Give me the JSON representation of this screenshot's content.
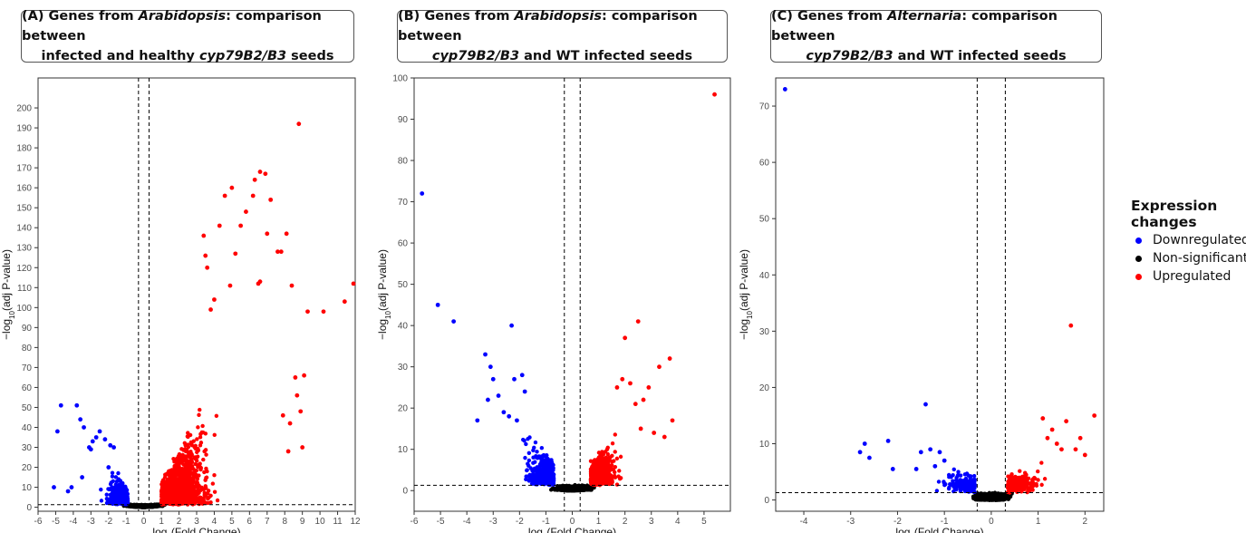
{
  "titles": [
    {
      "line1_pre": "(A) Genes from ",
      "line1_em": "Arabidopsis",
      "line1_post": ": comparison between",
      "line2_pre": "infected and healthy ",
      "line2_em": "cyp79B2/B3",
      "line2_post": " seeds"
    },
    {
      "line1_pre": "(B) Genes from ",
      "line1_em": "Arabidopsis",
      "line1_post": ": comparison between",
      "line2_pre": "",
      "line2_em": "cyp79B2/B3",
      "line2_post": " and WT infected seeds"
    },
    {
      "line1_pre": "(C) Genes from ",
      "line1_em": "Alternaria",
      "line1_post": ": comparison between",
      "line2_pre": "",
      "line2_em": "cyp79B2/B3",
      "line2_post": " and WT infected seeds"
    }
  ],
  "legend": {
    "title": "Expression changes",
    "items": [
      {
        "label": "Downregulated",
        "color": "#0000ff"
      },
      {
        "label": "Non-significant",
        "color": "#000000"
      },
      {
        "label": "Upregulated",
        "color": "#ff0000"
      }
    ]
  },
  "chart_data": [
    {
      "type": "scatter",
      "xlabel": "log2(Fold Change)",
      "ylabel": "-log10(adj P-value)",
      "xlim": [
        -6,
        12
      ],
      "ylim": [
        -2,
        215
      ],
      "xticks": [
        -6,
        -5,
        -4,
        -3,
        -2,
        -1,
        0,
        1,
        2,
        3,
        4,
        5,
        6,
        7,
        8,
        9,
        10,
        11,
        12
      ],
      "yticks": [
        0,
        10,
        20,
        30,
        40,
        50,
        60,
        70,
        80,
        90,
        100,
        110,
        120,
        130,
        140,
        150,
        160,
        170,
        180,
        190,
        200
      ],
      "fc_threshold": 0.3,
      "p_threshold": 1.3,
      "grid": false,
      "series": [
        {
          "name": "Downregulated",
          "color": "#0000ff",
          "points": [
            [
              -5.1,
              10
            ],
            [
              -4.9,
              38
            ],
            [
              -4.7,
              51
            ],
            [
              -3.8,
              51
            ],
            [
              -3.6,
              44
            ],
            [
              -3.4,
              40
            ],
            [
              -3.1,
              30
            ],
            [
              -3.0,
              29
            ],
            [
              -2.9,
              33
            ],
            [
              -2.7,
              35
            ],
            [
              -2.5,
              38
            ],
            [
              -2.2,
              34
            ],
            [
              -1.9,
              31
            ],
            [
              -1.7,
              30
            ],
            [
              -2.0,
              20
            ],
            [
              -3.5,
              15
            ],
            [
              -4.1,
              10
            ],
            [
              -4.3,
              8
            ]
          ]
        },
        {
          "name": "Upregulated",
          "color": "#ff0000",
          "points": [
            [
              8.8,
              192
            ],
            [
              11.9,
              112
            ],
            [
              11.4,
              103
            ],
            [
              10.2,
              98
            ],
            [
              9.3,
              98
            ],
            [
              9.1,
              66
            ],
            [
              8.6,
              65
            ],
            [
              8.4,
              111
            ],
            [
              8.1,
              137
            ],
            [
              7.8,
              128
            ],
            [
              7.6,
              128
            ],
            [
              7.2,
              154
            ],
            [
              7.0,
              137
            ],
            [
              6.6,
              168
            ],
            [
              6.3,
              164
            ],
            [
              6.9,
              167
            ],
            [
              6.6,
              113
            ],
            [
              6.5,
              112
            ],
            [
              6.2,
              156
            ],
            [
              5.8,
              148
            ],
            [
              5.5,
              141
            ],
            [
              5.2,
              127
            ],
            [
              5.0,
              160
            ],
            [
              4.9,
              111
            ],
            [
              4.6,
              156
            ],
            [
              4.3,
              141
            ],
            [
              3.4,
              136
            ],
            [
              3.5,
              126
            ],
            [
              3.6,
              120
            ],
            [
              4.0,
              104
            ],
            [
              3.8,
              99
            ],
            [
              8.9,
              48
            ],
            [
              8.7,
              56
            ],
            [
              8.3,
              42
            ],
            [
              7.9,
              46
            ],
            [
              9.0,
              30
            ],
            [
              8.2,
              28
            ]
          ]
        }
      ]
    },
    {
      "type": "scatter",
      "xlabel": "log2(Fold Change)",
      "ylabel": "-log10(adj P-value)",
      "xlim": [
        -6,
        6
      ],
      "ylim": [
        -5,
        100
      ],
      "xticks": [
        -6,
        -5,
        -4,
        -3,
        -2,
        -1,
        0,
        1,
        2,
        3,
        4,
        5
      ],
      "yticks": [
        0,
        10,
        20,
        30,
        40,
        50,
        60,
        70,
        80,
        90,
        100
      ],
      "fc_threshold": 0.3,
      "p_threshold": 1.3,
      "grid": false,
      "series": [
        {
          "name": "Downregulated",
          "color": "#0000ff",
          "points": [
            [
              -5.7,
              72
            ],
            [
              -5.1,
              45
            ],
            [
              -4.5,
              41
            ],
            [
              -2.3,
              40
            ],
            [
              -3.3,
              33
            ],
            [
              -3.1,
              30
            ],
            [
              -3.0,
              27
            ],
            [
              -2.8,
              23
            ],
            [
              -2.2,
              27
            ],
            [
              -1.9,
              28
            ],
            [
              -1.8,
              24
            ],
            [
              -3.6,
              17
            ],
            [
              -3.2,
              22
            ],
            [
              -2.6,
              19
            ],
            [
              -2.4,
              18
            ],
            [
              -2.1,
              17
            ]
          ]
        },
        {
          "name": "Upregulated",
          "color": "#ff0000",
          "points": [
            [
              5.4,
              96
            ],
            [
              2.5,
              41
            ],
            [
              2.0,
              37
            ],
            [
              3.7,
              32
            ],
            [
              3.3,
              30
            ],
            [
              2.9,
              25
            ],
            [
              3.8,
              17
            ],
            [
              2.7,
              22
            ],
            [
              2.4,
              21
            ],
            [
              3.1,
              14
            ],
            [
              2.2,
              26
            ],
            [
              1.9,
              27
            ],
            [
              1.7,
              25
            ],
            [
              2.6,
              15
            ],
            [
              3.5,
              13
            ]
          ]
        }
      ]
    },
    {
      "type": "scatter",
      "xlabel": "log2(Fold Change)",
      "ylabel": "-log10(adj P-value)",
      "xlim": [
        -4.6,
        2.4
      ],
      "ylim": [
        -2,
        75
      ],
      "xticks": [
        -4,
        -3,
        -2,
        -1,
        0,
        1,
        2
      ],
      "yticks": [
        0,
        10,
        20,
        30,
        40,
        50,
        60,
        70
      ],
      "fc_threshold": 0.3,
      "p_threshold": 1.3,
      "grid": false,
      "series": [
        {
          "name": "Downregulated",
          "color": "#0000ff",
          "points": [
            [
              -4.4,
              73
            ],
            [
              -1.4,
              17
            ],
            [
              -2.7,
              10
            ],
            [
              -2.2,
              10.5
            ],
            [
              -2.8,
              8.5
            ],
            [
              -2.6,
              7.5
            ],
            [
              -1.5,
              8.5
            ],
            [
              -1.3,
              9
            ],
            [
              -1.1,
              8.5
            ],
            [
              -1.0,
              7
            ],
            [
              -1.2,
              6
            ],
            [
              -1.6,
              5.5
            ],
            [
              -2.1,
              5.5
            ]
          ]
        },
        {
          "name": "Upregulated",
          "color": "#ff0000",
          "points": [
            [
              1.7,
              31
            ],
            [
              2.2,
              15
            ],
            [
              1.1,
              14.5
            ],
            [
              1.6,
              14
            ],
            [
              1.9,
              11
            ],
            [
              1.3,
              12.5
            ],
            [
              1.4,
              10
            ],
            [
              1.2,
              11
            ],
            [
              1.8,
              9
            ],
            [
              2.0,
              8
            ],
            [
              1.5,
              9
            ]
          ]
        }
      ]
    }
  ]
}
